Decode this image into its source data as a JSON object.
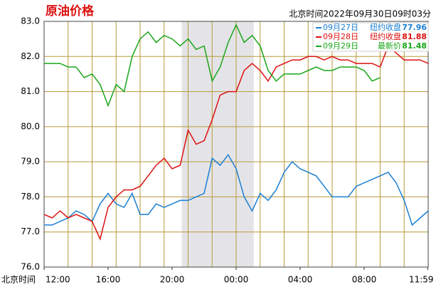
{
  "chart_data": {
    "type": "line",
    "title": "原油价格",
    "subtitle": "北京时间2022年09月30日09时03分",
    "x_label": "北京时间",
    "x": [
      0,
      0.5,
      1,
      1.5,
      2,
      2.5,
      3,
      3.5,
      4,
      4.5,
      5,
      5.5,
      6,
      6.5,
      7,
      7.5,
      8,
      8.5,
      9,
      9.5,
      10,
      10.5,
      11,
      11.5,
      12,
      12.5,
      13,
      13.5,
      14,
      14.5,
      15,
      15.5,
      16,
      16.5,
      17,
      17.5,
      18,
      18.5,
      19,
      19.5,
      20,
      20.5,
      21,
      21.5,
      22,
      22.5,
      23,
      23.5,
      24
    ],
    "xlim": [
      0,
      24
    ],
    "xticks": [
      {
        "value": 0,
        "label": "12:00"
      },
      {
        "value": 4,
        "label": "16:00"
      },
      {
        "value": 8,
        "label": "20:00"
      },
      {
        "value": 12,
        "label": "00:00"
      },
      {
        "value": 16,
        "label": "04:00"
      },
      {
        "value": 20,
        "label": "08:00"
      },
      {
        "value": 23.98,
        "label": "11:59"
      }
    ],
    "ylim": [
      76,
      83
    ],
    "yticks": [
      {
        "value": 76,
        "label": "76.0"
      },
      {
        "value": 77,
        "label": "77.0"
      },
      {
        "value": 78,
        "label": "78.0"
      },
      {
        "value": 79,
        "label": "79.0"
      },
      {
        "value": 80,
        "label": "80.0"
      },
      {
        "value": 81,
        "label": "81.0"
      },
      {
        "value": 82,
        "label": "82.0"
      },
      {
        "value": 83,
        "label": "83.0"
      }
    ],
    "grid": true,
    "shaded_range": [
      8.6,
      13.1
    ],
    "legend": "top-right",
    "series": [
      {
        "name": "09月27日",
        "legend_label": "纽约收盘",
        "legend_value": 77.96,
        "color": "#1a7fd4",
        "values": [
          77.2,
          77.2,
          77.3,
          77.4,
          77.6,
          77.5,
          77.3,
          77.8,
          78.1,
          77.8,
          77.7,
          78.1,
          77.5,
          77.5,
          77.8,
          77.7,
          77.8,
          77.9,
          77.9,
          78.0,
          78.1,
          79.1,
          78.9,
          79.2,
          78.8,
          78.0,
          77.6,
          78.1,
          77.9,
          78.2,
          78.7,
          79.0,
          78.8,
          78.7,
          78.6,
          78.3,
          78.0,
          78.0,
          78.0,
          78.3,
          78.4,
          78.5,
          78.6,
          78.7,
          78.4,
          77.9,
          77.2,
          77.4,
          77.6
        ]
      },
      {
        "name": "09月28日",
        "legend_label": "纽约收盘",
        "legend_value": 81.88,
        "color": "#dd1111",
        "values": [
          77.5,
          77.4,
          77.6,
          77.4,
          77.5,
          77.4,
          77.3,
          76.8,
          77.7,
          78.0,
          78.2,
          78.2,
          78.3,
          78.6,
          78.9,
          79.1,
          78.8,
          78.9,
          79.9,
          79.5,
          79.6,
          80.2,
          80.9,
          81.0,
          81.0,
          81.6,
          81.8,
          81.6,
          81.3,
          81.7,
          81.8,
          81.9,
          81.9,
          82.0,
          82.0,
          81.9,
          82.0,
          81.9,
          81.9,
          81.8,
          81.8,
          81.8,
          81.7,
          82.3,
          82.1,
          81.9,
          81.9,
          81.9,
          81.8
        ]
      },
      {
        "name": "09月29日",
        "legend_label": "最新价",
        "legend_value": 81.48,
        "color": "#1aa61a",
        "values": [
          81.8,
          81.8,
          81.8,
          81.7,
          81.7,
          81.4,
          81.5,
          81.2,
          80.6,
          81.2,
          81.0,
          82.0,
          82.5,
          82.7,
          82.4,
          82.6,
          82.5,
          82.3,
          82.5,
          82.2,
          82.3,
          81.3,
          81.7,
          82.4,
          82.9,
          82.4,
          82.6,
          82.3,
          81.6,
          81.3,
          81.5,
          81.5,
          81.5,
          81.6,
          81.7,
          81.6,
          81.6,
          81.7,
          81.7,
          81.7,
          81.6,
          81.3,
          81.4,
          null,
          null,
          null,
          null,
          null,
          null
        ]
      }
    ]
  }
}
